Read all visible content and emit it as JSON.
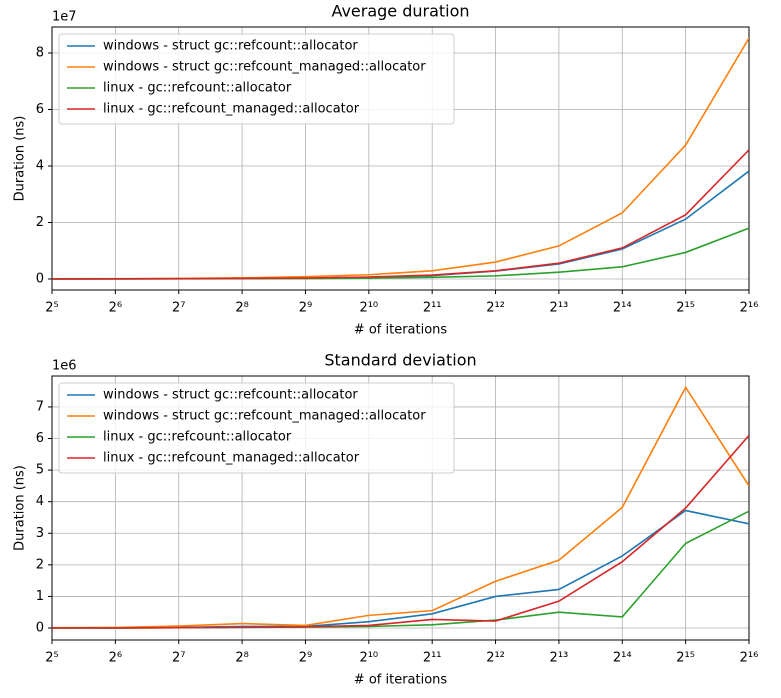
{
  "chart_data": [
    {
      "type": "line",
      "title": "Average duration",
      "x_label": "# of iterations",
      "y_label": "Duration (ns)",
      "y_offset_label": "1e7",
      "xscale": "log2",
      "x": [
        32,
        64,
        128,
        256,
        512,
        1024,
        2048,
        4096,
        8192,
        16384,
        32768,
        65536
      ],
      "xlim": [
        32,
        65536
      ],
      "xticks": [
        {
          "value": 32,
          "label": "2⁵"
        },
        {
          "value": 64,
          "label": "2⁶"
        },
        {
          "value": 128,
          "label": "2⁷"
        },
        {
          "value": 256,
          "label": "2⁸"
        },
        {
          "value": 512,
          "label": "2⁹"
        },
        {
          "value": 1024,
          "label": "2¹⁰"
        },
        {
          "value": 2048,
          "label": "2¹¹"
        },
        {
          "value": 4096,
          "label": "2¹²"
        },
        {
          "value": 8192,
          "label": "2¹³"
        },
        {
          "value": 16384,
          "label": "2¹⁴"
        },
        {
          "value": 32768,
          "label": "2¹⁵"
        },
        {
          "value": 65536,
          "label": "2¹⁶"
        }
      ],
      "ylim": [
        -0.39,
        8.92
      ],
      "yticks": [
        0,
        2,
        4,
        6,
        8
      ],
      "grid": true,
      "legend": "upper-left",
      "series": [
        {
          "name": "windows - struct gc::refcount::allocator",
          "color": "#1f77b4",
          "values": [
            0.003,
            0.005,
            0.01,
            0.02,
            0.035,
            0.06,
            0.12,
            0.28,
            0.53,
            1.06,
            2.12,
            3.82
          ]
        },
        {
          "name": "windows - struct gc::refcount_managed::allocator",
          "color": "#ff7f0e",
          "values": [
            0.005,
            0.01,
            0.02,
            0.04,
            0.08,
            0.15,
            0.29,
            0.6,
            1.17,
            2.34,
            4.74,
            8.53
          ]
        },
        {
          "name": "linux - gc::refcount::allocator",
          "color": "#2ca02c",
          "values": [
            0.002,
            0.003,
            0.005,
            0.008,
            0.015,
            0.03,
            0.06,
            0.11,
            0.24,
            0.43,
            0.94,
            1.8
          ]
        },
        {
          "name": "linux - gc::refcount_managed::allocator",
          "color": "#d62728",
          "values": [
            0.003,
            0.005,
            0.01,
            0.02,
            0.035,
            0.07,
            0.14,
            0.29,
            0.56,
            1.1,
            2.27,
            4.57
          ]
        }
      ]
    },
    {
      "type": "line",
      "title": "Standard deviation",
      "x_label": "# of iterations",
      "y_label": "Duration (ns)",
      "y_offset_label": "1e6",
      "xscale": "log2",
      "x": [
        32,
        64,
        128,
        256,
        512,
        1024,
        2048,
        4096,
        8192,
        16384,
        32768,
        65536
      ],
      "xlim": [
        32,
        65536
      ],
      "xticks": [
        {
          "value": 32,
          "label": "2⁵"
        },
        {
          "value": 64,
          "label": "2⁶"
        },
        {
          "value": 128,
          "label": "2⁷"
        },
        {
          "value": 256,
          "label": "2⁸"
        },
        {
          "value": 512,
          "label": "2⁹"
        },
        {
          "value": 1024,
          "label": "2¹⁰"
        },
        {
          "value": 2048,
          "label": "2¹¹"
        },
        {
          "value": 4096,
          "label": "2¹²"
        },
        {
          "value": 8192,
          "label": "2¹³"
        },
        {
          "value": 16384,
          "label": "2¹⁴"
        },
        {
          "value": 32768,
          "label": "2¹⁵"
        },
        {
          "value": 65536,
          "label": "2¹⁶"
        }
      ],
      "ylim": [
        -0.38,
        7.98
      ],
      "yticks": [
        0,
        1,
        2,
        3,
        4,
        5,
        6,
        7
      ],
      "grid": true,
      "legend": "upper-left",
      "series": [
        {
          "name": "windows - struct gc::refcount::allocator",
          "color": "#1f77b4",
          "values": [
            0.0,
            0.0,
            0.02,
            0.05,
            0.05,
            0.2,
            0.45,
            1.0,
            1.22,
            2.28,
            3.72,
            3.3
          ]
        },
        {
          "name": "windows - struct gc::refcount_managed::allocator",
          "color": "#ff7f0e",
          "values": [
            0.01,
            0.02,
            0.06,
            0.14,
            0.08,
            0.4,
            0.55,
            1.48,
            2.15,
            3.82,
            7.62,
            4.5
          ]
        },
        {
          "name": "linux - gc::refcount::allocator",
          "color": "#2ca02c",
          "values": [
            0.0,
            0.0,
            0.01,
            0.02,
            0.03,
            0.05,
            0.1,
            0.25,
            0.5,
            0.35,
            2.68,
            3.7
          ]
        },
        {
          "name": "linux - gc::refcount_managed::allocator",
          "color": "#d62728",
          "values": [
            0.0,
            0.0,
            0.01,
            0.02,
            0.04,
            0.08,
            0.27,
            0.22,
            0.85,
            2.1,
            3.8,
            6.1
          ]
        }
      ]
    }
  ]
}
